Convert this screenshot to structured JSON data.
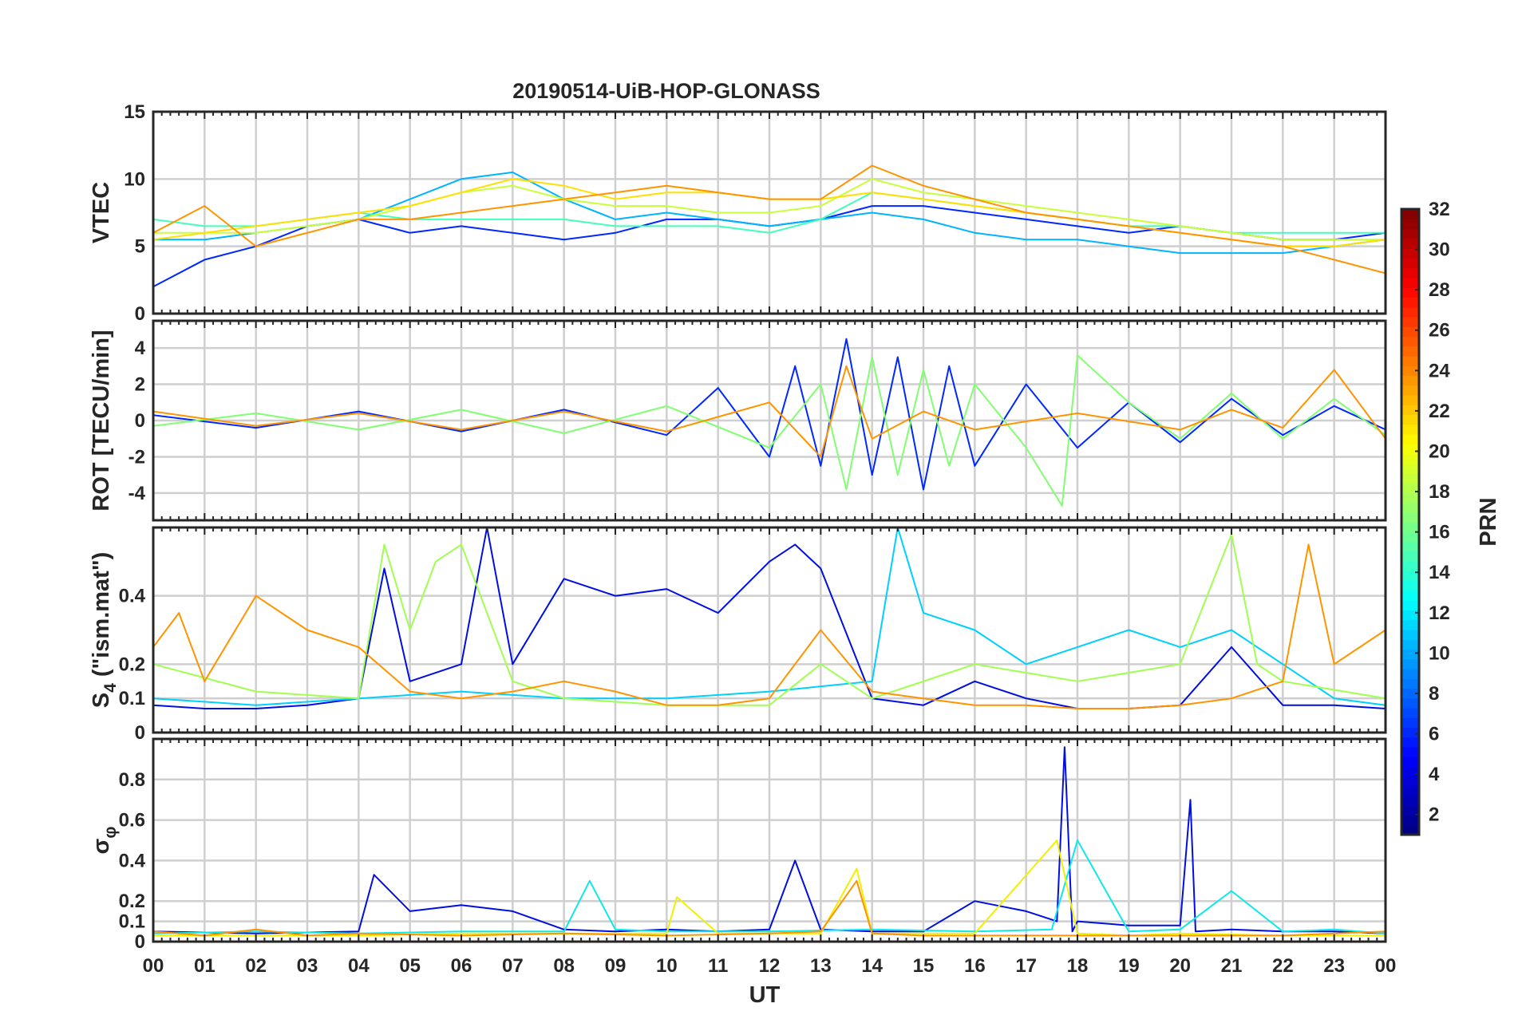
{
  "chart_data": {
    "type": "line",
    "title": "20190514-UiB-HOP-GLONASS",
    "xlabel": "UT",
    "x_tick_labels": [
      "00",
      "01",
      "02",
      "03",
      "04",
      "05",
      "06",
      "07",
      "08",
      "09",
      "10",
      "11",
      "12",
      "13",
      "14",
      "15",
      "16",
      "17",
      "18",
      "19",
      "20",
      "21",
      "22",
      "23",
      "00"
    ],
    "x_range_hours": [
      0,
      24
    ],
    "grid": true,
    "colorbar": {
      "label": "PRN",
      "range": [
        1,
        32
      ],
      "tick_labels": [
        "2",
        "4",
        "6",
        "8",
        "10",
        "12",
        "14",
        "16",
        "18",
        "20",
        "22",
        "24",
        "26",
        "28",
        "30",
        "32"
      ],
      "colormap": "jet",
      "placement": "right"
    },
    "panels": [
      {
        "id": "vtec",
        "ylabel": "VTEC",
        "ylim": [
          0,
          15
        ],
        "yticks": [
          0,
          5,
          10,
          15
        ],
        "ytick_labels": [
          "0",
          "5",
          "10",
          "15"
        ],
        "series": [
          {
            "prn": 3,
            "color": "#0028ff",
            "x": [
              0,
              1,
              2,
              3,
              4,
              5,
              6,
              7,
              8,
              9,
              10,
              11,
              12,
              13,
              14,
              15,
              16,
              17,
              18,
              19,
              20,
              21,
              22,
              23,
              24
            ],
            "y": [
              2,
              4,
              5,
              6.5,
              7,
              6,
              6.5,
              6,
              5.5,
              6,
              7,
              7,
              6.5,
              7,
              8,
              8,
              7.5,
              7,
              6.5,
              6,
              6.5,
              6,
              5.5,
              5.5,
              6
            ]
          },
          {
            "prn": 11,
            "color": "#00b4ff",
            "x": [
              0,
              1,
              2,
              3,
              4,
              5,
              6,
              7,
              8,
              9,
              10,
              11,
              12,
              13,
              14,
              15,
              16,
              17,
              18,
              19,
              20,
              21,
              22,
              23,
              24
            ],
            "y": [
              5.5,
              5.5,
              6,
              6.5,
              7,
              8.5,
              10,
              10.5,
              8.5,
              7,
              7.5,
              7,
              6.5,
              7,
              7.5,
              7,
              6,
              5.5,
              5.5,
              5,
              4.5,
              4.5,
              4.5,
              5,
              5.5
            ]
          },
          {
            "prn": 15,
            "color": "#40ffb8",
            "x": [
              0,
              1,
              2,
              3,
              4,
              5,
              6,
              7,
              8,
              9,
              10,
              11,
              12,
              13,
              14,
              15,
              16,
              17,
              18,
              19,
              20,
              21,
              22,
              23,
              24
            ],
            "y": [
              7,
              6.5,
              6.5,
              7,
              7.5,
              7,
              7,
              7,
              7,
              6.5,
              6.5,
              6.5,
              6,
              7,
              9,
              8.5,
              8,
              7.5,
              7,
              6.5,
              6.5,
              6,
              6,
              6,
              6
            ]
          },
          {
            "prn": 18,
            "color": "#c8ff38",
            "x": [
              0,
              1,
              2,
              3,
              4,
              5,
              6,
              7,
              8,
              9,
              10,
              11,
              12,
              13,
              14,
              15,
              16,
              17,
              18,
              19,
              20,
              21,
              22,
              23,
              24
            ],
            "y": [
              6,
              6,
              6,
              6.5,
              7,
              8,
              9,
              9.5,
              8.5,
              8,
              8,
              7.5,
              7.5,
              8,
              10,
              9,
              8.5,
              8,
              7.5,
              7,
              6.5,
              6,
              5.5,
              5.5,
              5.5
            ]
          },
          {
            "prn": 21,
            "color": "#ffe000",
            "x": [
              0,
              1,
              2,
              3,
              4,
              5,
              6,
              7,
              8,
              9,
              10,
              11,
              12,
              13,
              14,
              15,
              16,
              17,
              18,
              19,
              20,
              21,
              22,
              23,
              24
            ],
            "y": [
              5.5,
              6,
              6.5,
              7,
              7.5,
              8,
              9,
              10,
              9.5,
              8.5,
              9,
              9,
              8.5,
              8.5,
              9,
              8.5,
              8,
              7.5,
              7,
              6.5,
              6,
              5.5,
              5,
              5,
              5.5
            ]
          },
          {
            "prn": 24,
            "color": "#ff9400",
            "x": [
              0,
              1,
              2,
              3,
              4,
              5,
              6,
              7,
              8,
              9,
              10,
              11,
              12,
              13,
              14,
              15,
              16,
              17,
              18,
              19,
              20,
              21,
              22,
              23,
              24
            ],
            "y": [
              6,
              8,
              5,
              6,
              7,
              7,
              7.5,
              8,
              8.5,
              9,
              9.5,
              9,
              8.5,
              8.5,
              11,
              9.5,
              8.5,
              7.5,
              7,
              6.5,
              6,
              5.5,
              5,
              4,
              3
            ]
          }
        ]
      },
      {
        "id": "rot",
        "ylabel": "ROT [TECU/min]",
        "ylim": [
          -5.5,
          5.5
        ],
        "yticks": [
          -4,
          -2,
          0,
          2,
          4
        ],
        "ytick_labels": [
          "-4",
          "-2",
          "0",
          "2",
          "4"
        ],
        "series": [
          {
            "prn": 3,
            "color": "#0028ff",
            "x": [
              0,
              2,
              4,
              6,
              8,
              10,
              11,
              12,
              12.5,
              13,
              13.5,
              14,
              14.5,
              15,
              15.5,
              16,
              17,
              18,
              19,
              20,
              21,
              22,
              23,
              24
            ],
            "y": [
              0.3,
              -0.4,
              0.5,
              -0.6,
              0.6,
              -0.8,
              1.8,
              -2,
              3,
              -2.5,
              4.5,
              -3,
              3.5,
              -3.8,
              3,
              -2.5,
              2,
              -1.5,
              1,
              -1.2,
              1.2,
              -0.8,
              0.8,
              -0.5
            ]
          },
          {
            "prn": 16,
            "color": "#80ff70",
            "x": [
              0,
              2,
              4,
              6,
              8,
              10,
              12,
              13,
              13.5,
              14,
              14.5,
              15,
              15.5,
              16,
              17,
              17.7,
              18,
              19,
              20,
              21,
              22,
              23,
              24
            ],
            "y": [
              -0.3,
              0.4,
              -0.5,
              0.6,
              -0.7,
              0.8,
              -1.5,
              2,
              -3.8,
              3.5,
              -3,
              2.8,
              -2.5,
              2,
              -1.5,
              -4.7,
              3.6,
              1,
              -1,
              1.5,
              -1,
              1.2,
              -0.8
            ]
          },
          {
            "prn": 24,
            "color": "#ff9400",
            "x": [
              0,
              2,
              4,
              6,
              8,
              10,
              12,
              13,
              13.5,
              14,
              15,
              16,
              18,
              20,
              21,
              22,
              23,
              24
            ],
            "y": [
              0.5,
              -0.3,
              0.4,
              -0.5,
              0.5,
              -0.6,
              1,
              -2,
              3,
              -1,
              0.5,
              -0.5,
              0.4,
              -0.5,
              0.6,
              -0.4,
              2.8,
              -1
            ]
          }
        ]
      },
      {
        "id": "s4",
        "ylabel": "S4 (\"ism.mat\")",
        "ylabel_main": "S",
        "ylabel_sub": "4",
        "ylabel_rest": " (\"ism.mat\")",
        "ylim": [
          0,
          0.6
        ],
        "yticks": [
          0,
          0.1,
          0.2,
          0.4
        ],
        "ytick_labels": [
          "0",
          "0.1",
          "0.2",
          "0.4"
        ],
        "series": [
          {
            "prn": 2,
            "color": "#000fe0",
            "x": [
              0,
              1,
              2,
              3,
              4,
              4.5,
              5,
              6,
              6.5,
              7,
              8,
              9,
              10,
              11,
              12,
              12.5,
              13,
              14,
              15,
              16,
              17,
              18,
              19,
              20,
              21,
              22,
              23,
              24
            ],
            "y": [
              0.08,
              0.07,
              0.07,
              0.08,
              0.1,
              0.48,
              0.15,
              0.2,
              0.6,
              0.2,
              0.45,
              0.4,
              0.42,
              0.35,
              0.5,
              0.55,
              0.48,
              0.1,
              0.08,
              0.15,
              0.1,
              0.07,
              0.07,
              0.08,
              0.25,
              0.08,
              0.08,
              0.07
            ]
          },
          {
            "prn": 12,
            "color": "#00d0ff",
            "x": [
              0,
              2,
              4,
              6,
              8,
              10,
              12,
              14,
              14.5,
              15,
              16,
              17,
              18,
              19,
              20,
              21,
              22,
              23,
              24
            ],
            "y": [
              0.1,
              0.08,
              0.1,
              0.12,
              0.1,
              0.1,
              0.12,
              0.15,
              0.6,
              0.35,
              0.3,
              0.2,
              0.25,
              0.3,
              0.25,
              0.3,
              0.2,
              0.1,
              0.08
            ]
          },
          {
            "prn": 17,
            "color": "#a0ff50",
            "x": [
              0,
              2,
              4,
              4.5,
              5,
              5.5,
              6,
              7,
              8,
              10,
              12,
              13,
              14,
              16,
              18,
              20,
              21,
              21.5,
              22,
              24
            ],
            "y": [
              0.2,
              0.12,
              0.1,
              0.55,
              0.3,
              0.5,
              0.55,
              0.15,
              0.1,
              0.08,
              0.08,
              0.2,
              0.1,
              0.2,
              0.15,
              0.2,
              0.58,
              0.2,
              0.15,
              0.1
            ]
          },
          {
            "prn": 24,
            "color": "#ff9400",
            "x": [
              0,
              0.5,
              1,
              2,
              3,
              4,
              5,
              6,
              7,
              8,
              9,
              10,
              11,
              12,
              13,
              14,
              15,
              16,
              17,
              18,
              19,
              20,
              21,
              22,
              22.5,
              23,
              24
            ],
            "y": [
              0.25,
              0.35,
              0.15,
              0.4,
              0.3,
              0.25,
              0.12,
              0.1,
              0.12,
              0.15,
              0.12,
              0.08,
              0.08,
              0.1,
              0.3,
              0.12,
              0.1,
              0.08,
              0.08,
              0.07,
              0.07,
              0.08,
              0.1,
              0.15,
              0.55,
              0.2,
              0.3
            ]
          }
        ]
      },
      {
        "id": "sigma_phi",
        "ylabel": "σφ",
        "ylabel_main": "σ",
        "ylabel_sub": "φ",
        "ylim": [
          0,
          1
        ],
        "yticks": [
          0,
          0.1,
          0.2,
          0.4,
          0.6,
          0.8
        ],
        "ytick_labels": [
          "0",
          "0.1",
          "0.2",
          "0.4",
          "0.6",
          "0.8"
        ],
        "series": [
          {
            "prn": 2,
            "color": "#000fe0",
            "x": [
              0,
              2,
              4,
              4.3,
              5,
              6,
              7,
              8,
              9,
              10,
              11,
              12,
              12.5,
              13,
              14,
              15,
              16,
              17,
              17.6,
              17.75,
              17.9,
              18,
              19,
              20,
              20.2,
              20.3,
              21,
              22,
              23,
              24
            ],
            "y": [
              0.05,
              0.04,
              0.05,
              0.33,
              0.15,
              0.18,
              0.15,
              0.06,
              0.05,
              0.06,
              0.05,
              0.06,
              0.4,
              0.06,
              0.05,
              0.05,
              0.2,
              0.15,
              0.1,
              0.96,
              0.05,
              0.1,
              0.08,
              0.08,
              0.7,
              0.05,
              0.06,
              0.05,
              0.05,
              0.04
            ]
          },
          {
            "prn": 13,
            "color": "#10e8e8",
            "x": [
              0,
              2,
              4,
              6,
              8,
              8.5,
              9,
              10,
              12,
              14,
              16,
              17.5,
              18,
              19,
              20,
              21,
              22,
              23,
              24
            ],
            "y": [
              0.04,
              0.05,
              0.04,
              0.05,
              0.05,
              0.3,
              0.06,
              0.05,
              0.05,
              0.06,
              0.05,
              0.06,
              0.5,
              0.05,
              0.06,
              0.25,
              0.05,
              0.06,
              0.04
            ]
          },
          {
            "prn": 20,
            "color": "#f0f000",
            "x": [
              0,
              2,
              4,
              6,
              8,
              10,
              10.2,
              11,
              12,
              13,
              13.7,
              14,
              16,
              17.6,
              18,
              19,
              20,
              22,
              24
            ],
            "y": [
              0.03,
              0.03,
              0.03,
              0.04,
              0.04,
              0.04,
              0.22,
              0.04,
              0.04,
              0.04,
              0.36,
              0.04,
              0.04,
              0.5,
              0.04,
              0.03,
              0.04,
              0.03,
              0.03
            ]
          },
          {
            "prn": 24,
            "color": "#ff9400",
            "x": [
              0,
              1,
              2,
              3,
              4,
              6,
              8,
              10,
              12,
              13,
              13.7,
              14,
              15,
              16,
              18,
              20,
              22,
              24
            ],
            "y": [
              0.05,
              0.03,
              0.06,
              0.03,
              0.04,
              0.03,
              0.04,
              0.03,
              0.04,
              0.05,
              0.3,
              0.04,
              0.03,
              0.03,
              0.03,
              0.03,
              0.03,
              0.05
            ]
          }
        ]
      }
    ]
  }
}
